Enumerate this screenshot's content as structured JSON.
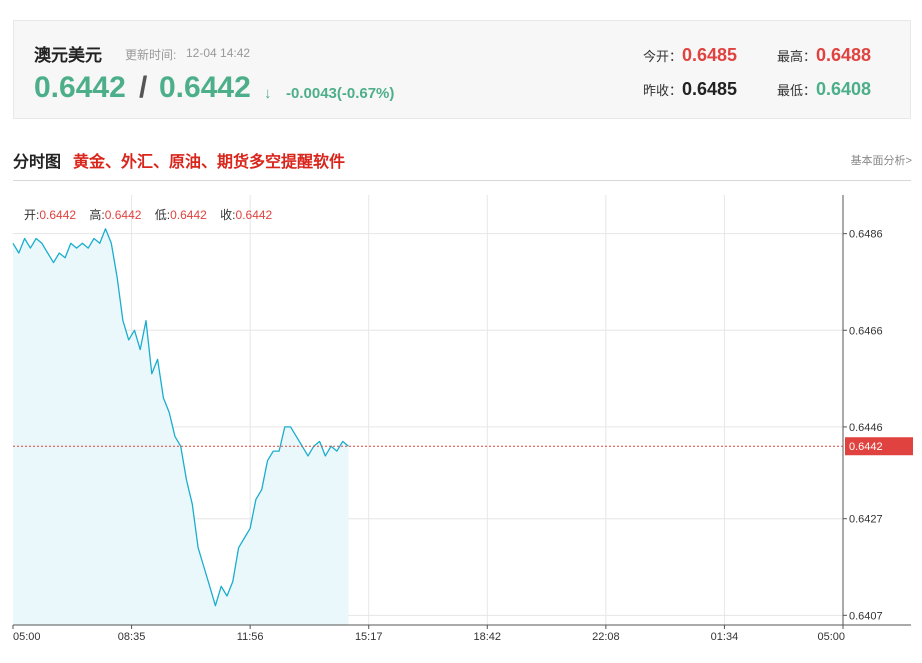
{
  "header": {
    "pair_name": "澳元美元",
    "update_label": "更新时间:",
    "update_time": "12-04 14:42",
    "bid": "0.6442",
    "slash": "/",
    "ask": "0.6442",
    "arrow": "↓",
    "change": "-0.0043(-0.67%)",
    "open_label": "今开：",
    "open_value": "0.6485",
    "high_label": "最高：",
    "high_value": "0.6488",
    "prev_close_label": "昨收：",
    "prev_close_value": "0.6485",
    "low_label": "最低：",
    "low_value": "0.6408"
  },
  "title_row": {
    "section_title": "分时图",
    "promo": "黄金、外汇、原油、期货多空提醒软件",
    "fundamentals_link": "基本面分析>"
  },
  "ohlc": {
    "open_label": "开:",
    "open_value": "0.6442",
    "high_label": "高:",
    "high_value": "0.6442",
    "low_label": "低:",
    "low_value": "0.6442",
    "close_label": "收:",
    "close_value": "0.6442"
  },
  "colors": {
    "line": "#1aadce",
    "area": "#eaf8fc",
    "up": "#e0433f",
    "down": "#4caf8a",
    "grid": "#e6e6e6"
  },
  "chart_data": {
    "type": "line",
    "x_ticks": [
      "05:00",
      "08:35",
      "11:56",
      "15:17",
      "18:42",
      "22:08",
      "01:34",
      "05:00"
    ],
    "y_ticks": [
      0.6486,
      0.6466,
      0.6446,
      0.6427,
      0.6407
    ],
    "ylim": [
      0.6405,
      0.6494
    ],
    "current_value": 0.6442,
    "current_label": "0.6442",
    "grid": true,
    "series": [
      {
        "x": [
          "05:00",
          "05:10",
          "05:20",
          "05:30",
          "05:40",
          "05:50",
          "06:00",
          "06:10",
          "06:20",
          "06:30",
          "06:40",
          "06:50",
          "07:00",
          "07:10",
          "07:20",
          "07:30",
          "07:40",
          "07:50",
          "08:00",
          "08:10",
          "08:20",
          "08:30",
          "08:40",
          "08:50",
          "09:00",
          "09:10",
          "09:20",
          "09:30",
          "09:40",
          "09:50",
          "10:00",
          "10:10",
          "10:20",
          "10:30",
          "10:40",
          "10:50",
          "11:00",
          "11:10",
          "11:20",
          "11:30",
          "11:40",
          "11:50",
          "12:00",
          "12:10",
          "12:20",
          "12:30",
          "12:40",
          "12:50",
          "13:00",
          "13:10",
          "13:20",
          "13:30",
          "13:40",
          "13:50",
          "14:00",
          "14:10",
          "14:20",
          "14:30",
          "14:40"
        ],
        "y": [
          0.6484,
          0.6482,
          0.6485,
          0.6483,
          0.6485,
          0.6484,
          0.6482,
          0.648,
          0.6482,
          0.6481,
          0.6484,
          0.6483,
          0.6484,
          0.6483,
          0.6485,
          0.6484,
          0.6487,
          0.6484,
          0.6477,
          0.6468,
          0.6464,
          0.6466,
          0.6462,
          0.6468,
          0.6457,
          0.646,
          0.6452,
          0.6449,
          0.6444,
          0.6442,
          0.6435,
          0.643,
          0.6421,
          0.6417,
          0.6413,
          0.6409,
          0.6413,
          0.6411,
          0.6414,
          0.6421,
          0.6423,
          0.6425,
          0.6431,
          0.6433,
          0.6439,
          0.6441,
          0.6441,
          0.6446,
          0.6446,
          0.6444,
          0.6442,
          0.644,
          0.6442,
          0.6443,
          0.644,
          0.6442,
          0.6441,
          0.6443,
          0.6442
        ]
      }
    ]
  }
}
